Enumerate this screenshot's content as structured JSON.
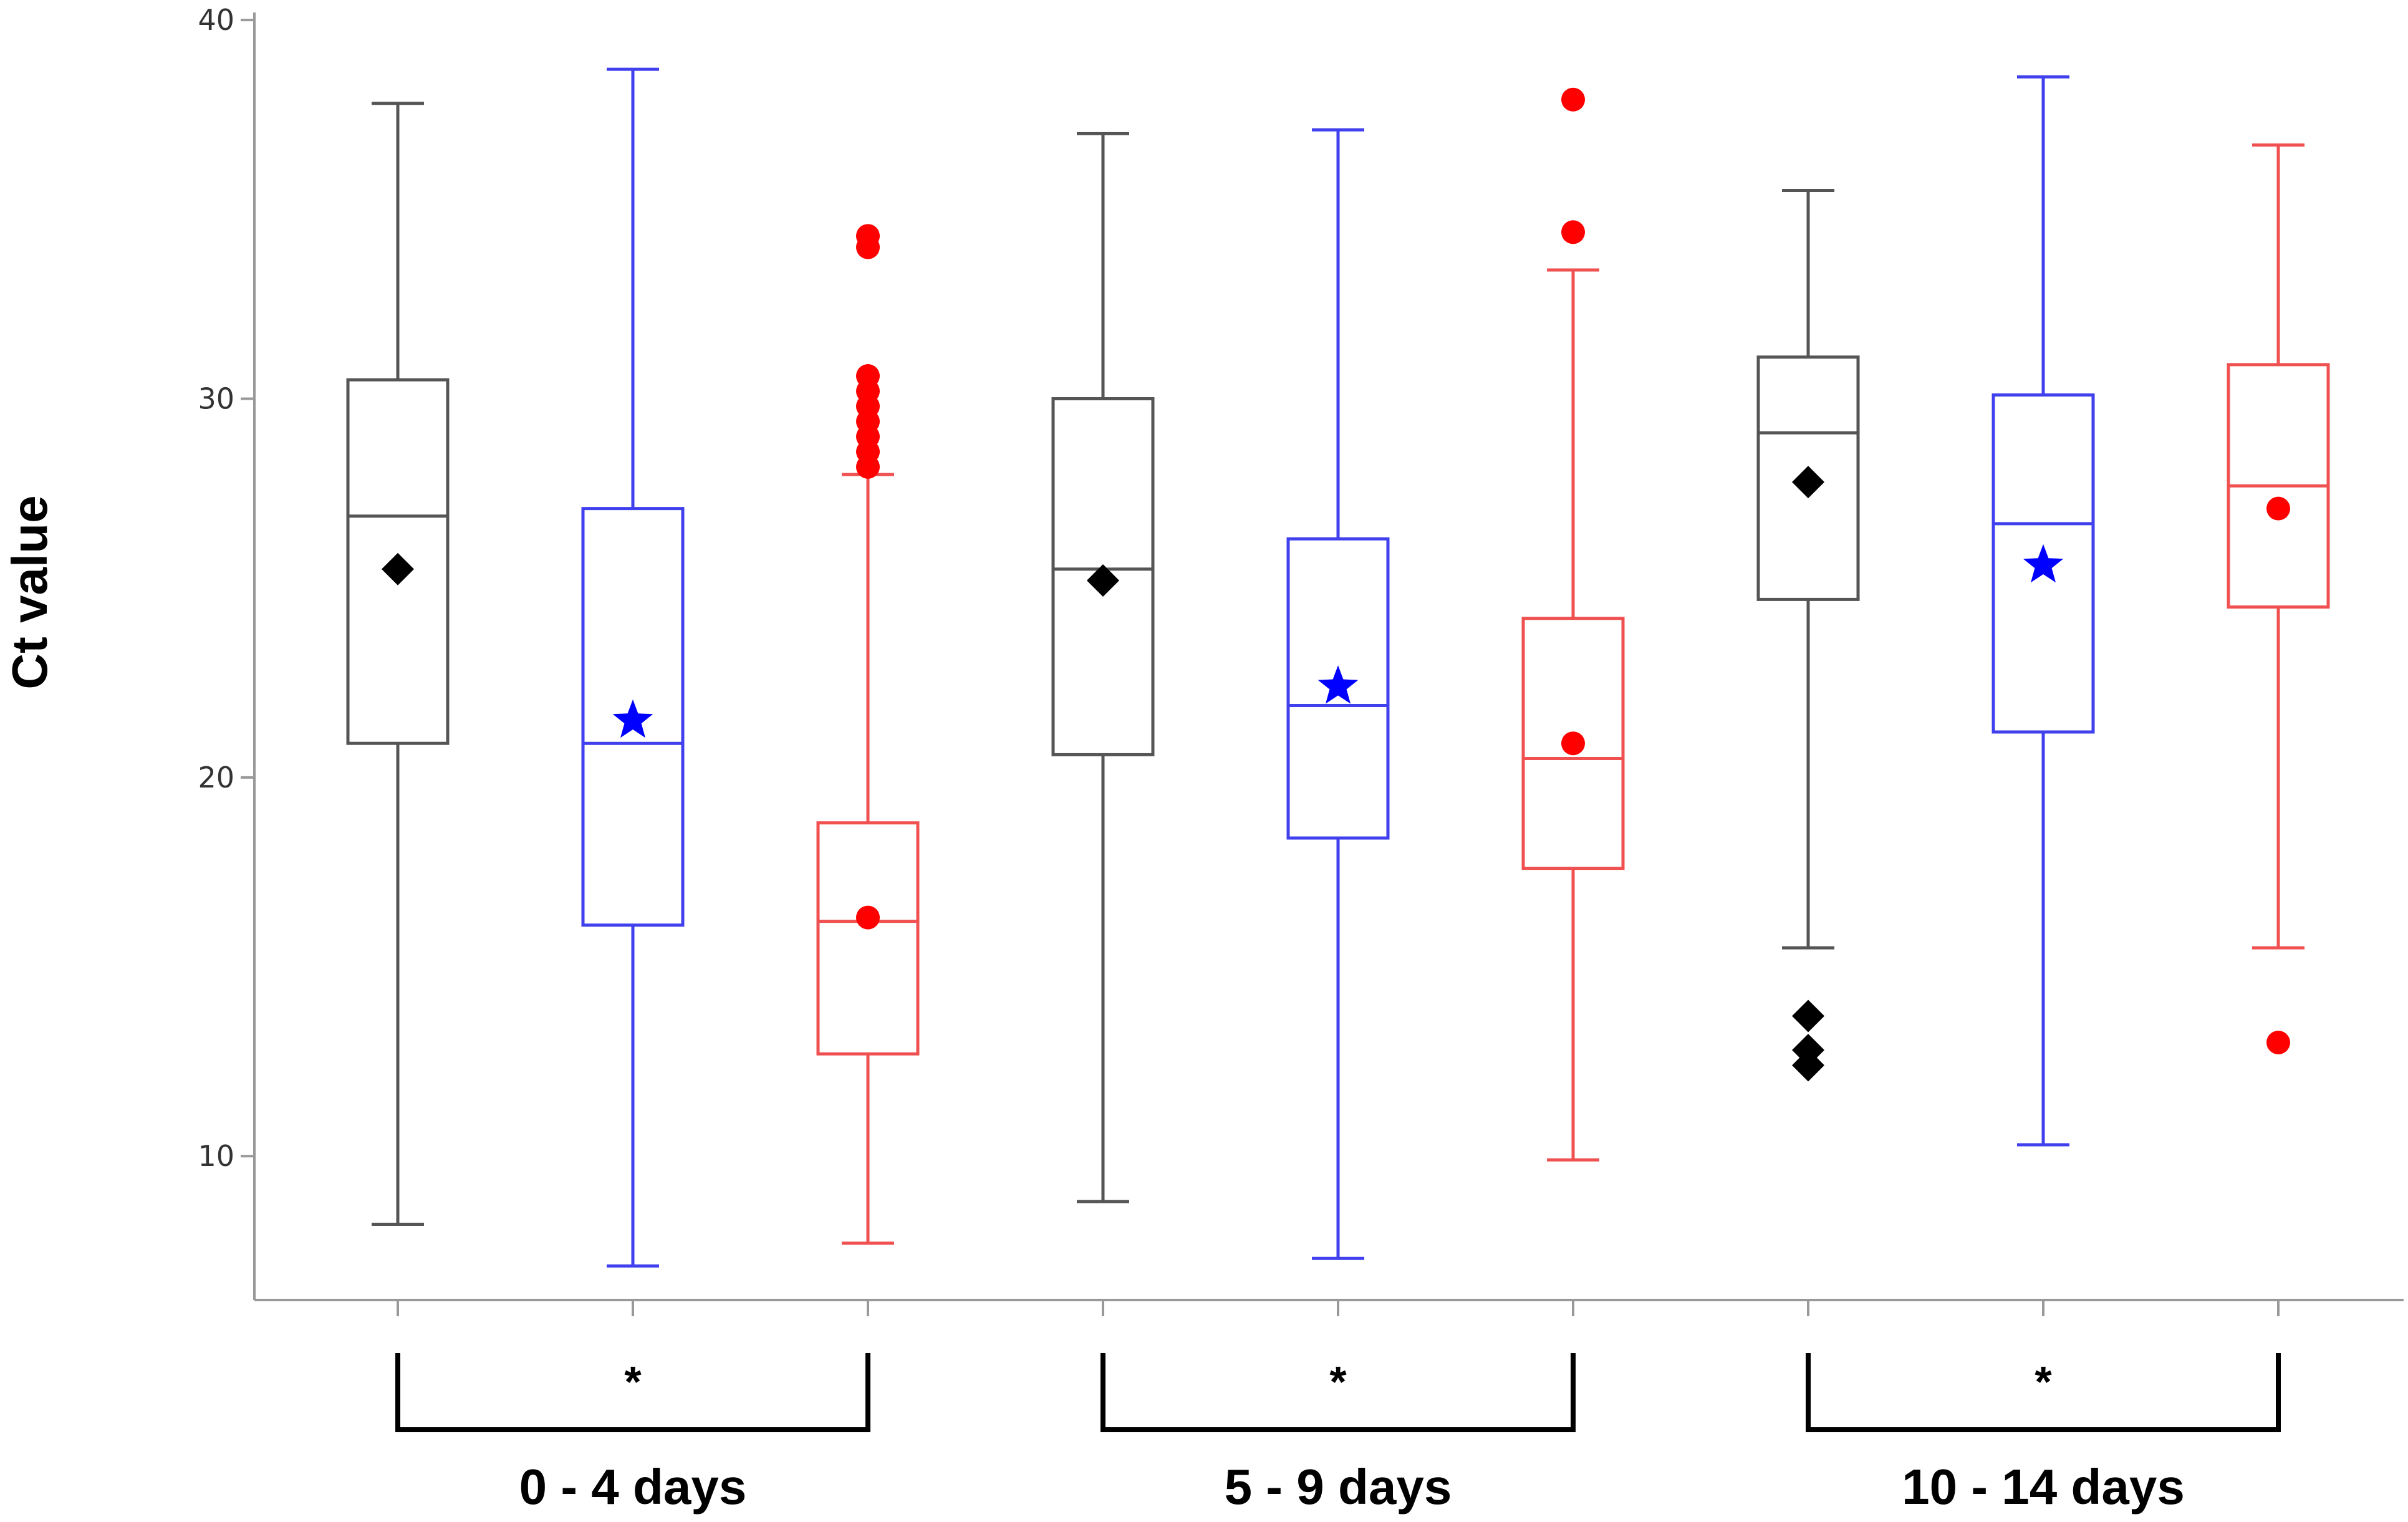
{
  "chart_data": {
    "type": "box",
    "title": "",
    "xlabel": "",
    "ylabel": "Ct value",
    "ylim": [
      6.2,
      40.2
    ],
    "yticks": [
      10,
      20,
      30,
      40
    ],
    "ytick_labels": [
      "10",
      "20",
      "30",
      "40"
    ],
    "grid": false,
    "legend": "none",
    "groups": [
      {
        "label": "0 - 4 days",
        "significance": "*"
      },
      {
        "label": "5 - 9 days",
        "significance": "*"
      },
      {
        "label": "10 - 14 days",
        "significance": "*"
      }
    ],
    "boxes": [
      {
        "group": 0,
        "color": "#555555",
        "marker": "diamond",
        "whisker_low": 8.2,
        "q1": 20.9,
        "median": 26.9,
        "q3": 30.5,
        "whisker_high": 37.8,
        "mean": 25.5,
        "outliers": []
      },
      {
        "group": 0,
        "color": "#4040ee",
        "marker": "star",
        "whisker_low": 7.1,
        "q1": 16.1,
        "median": 20.9,
        "q3": 27.1,
        "whisker_high": 38.7,
        "mean": 21.5,
        "outliers": []
      },
      {
        "group": 0,
        "color": "#f05050",
        "marker": "circle",
        "whisker_low": 7.7,
        "q1": 12.7,
        "median": 16.2,
        "q3": 18.8,
        "whisker_high": 28.0,
        "mean": 16.3,
        "outliers": [
          34.3,
          34.0,
          30.6,
          30.2,
          29.8,
          29.4,
          29.0,
          28.6,
          28.2
        ]
      },
      {
        "group": 1,
        "color": "#555555",
        "marker": "diamond",
        "whisker_low": 8.8,
        "q1": 20.6,
        "median": 25.5,
        "q3": 30.0,
        "whisker_high": 37.0,
        "mean": 25.2,
        "outliers": []
      },
      {
        "group": 1,
        "color": "#4040ee",
        "marker": "star",
        "whisker_low": 7.3,
        "q1": 18.4,
        "median": 21.9,
        "q3": 26.3,
        "whisker_high": 37.1,
        "mean": 22.4,
        "outliers": []
      },
      {
        "group": 1,
        "color": "#f05050",
        "marker": "circle",
        "whisker_low": 9.9,
        "q1": 17.6,
        "median": 20.5,
        "q3": 24.2,
        "whisker_high": 33.4,
        "mean": 20.9,
        "outliers": [
          37.9,
          34.4
        ]
      },
      {
        "group": 2,
        "color": "#555555",
        "marker": "diamond",
        "whisker_low": 15.5,
        "q1": 24.7,
        "median": 29.1,
        "q3": 31.1,
        "whisker_high": 35.5,
        "mean": 27.8,
        "outliers": [
          13.7,
          12.8,
          12.4
        ]
      },
      {
        "group": 2,
        "color": "#4040ee",
        "marker": "star",
        "whisker_low": 10.3,
        "q1": 21.2,
        "median": 26.7,
        "q3": 30.1,
        "whisker_high": 38.5,
        "mean": 25.6,
        "outliers": []
      },
      {
        "group": 2,
        "color": "#f05050",
        "marker": "circle",
        "whisker_low": 15.5,
        "q1": 24.5,
        "median": 27.7,
        "q3": 30.9,
        "whisker_high": 36.7,
        "mean": 27.1,
        "outliers": [
          13.0
        ]
      }
    ],
    "colors": {
      "axis": "#999999",
      "marker_diamond": "#000000",
      "marker_star": "#0000ff",
      "marker_circle": "#ff0000",
      "bracket": "#000000"
    }
  }
}
